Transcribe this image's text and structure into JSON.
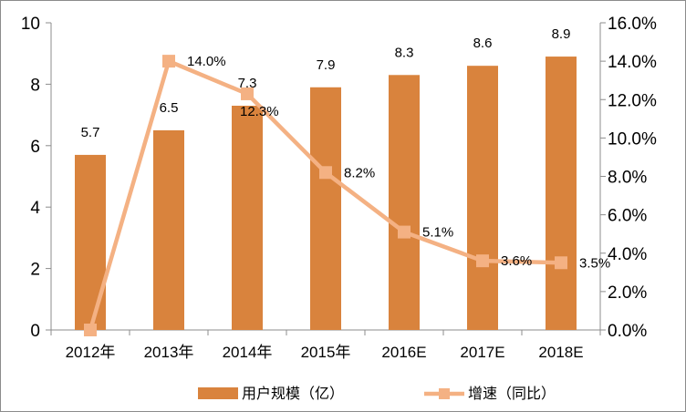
{
  "chart_data": {
    "type": "bar",
    "title": "",
    "categories": [
      "2012年",
      "2013年",
      "2014年",
      "2015年",
      "2016E",
      "2017E",
      "2018E"
    ],
    "series": [
      {
        "name": "用户规模（亿）",
        "type": "bar",
        "axis": "left",
        "values": [
          5.7,
          6.5,
          7.3,
          7.9,
          8.3,
          8.6,
          8.9
        ],
        "labels": [
          "5.7",
          "6.5",
          "7.3",
          "7.9",
          "8.3",
          "8.6",
          "8.9"
        ],
        "color": "#d9833d"
      },
      {
        "name": "增速（同比）",
        "type": "line",
        "axis": "right",
        "values": [
          0.0,
          14.0,
          12.3,
          8.2,
          5.1,
          3.6,
          3.5
        ],
        "labels": [
          "",
          "14.0%",
          "12.3%",
          "8.2%",
          "5.1%",
          "3.6%",
          "3.5%"
        ],
        "color": "#f4b183"
      }
    ],
    "y_left": {
      "ylim": [
        0,
        10
      ],
      "ticks": [
        0,
        2,
        4,
        6,
        8,
        10
      ],
      "tick_labels": [
        "0",
        "2",
        "4",
        "6",
        "8",
        "10"
      ]
    },
    "y_right": {
      "ylim": [
        0,
        16
      ],
      "ticks": [
        0,
        2,
        4,
        6,
        8,
        10,
        12,
        14,
        16
      ],
      "tick_labels": [
        "0.0%",
        "2.0%",
        "4.0%",
        "6.0%",
        "8.0%",
        "10.0%",
        "12.0%",
        "14.0%",
        "16.0%"
      ]
    },
    "grid": false,
    "legend": "bottom-center"
  }
}
